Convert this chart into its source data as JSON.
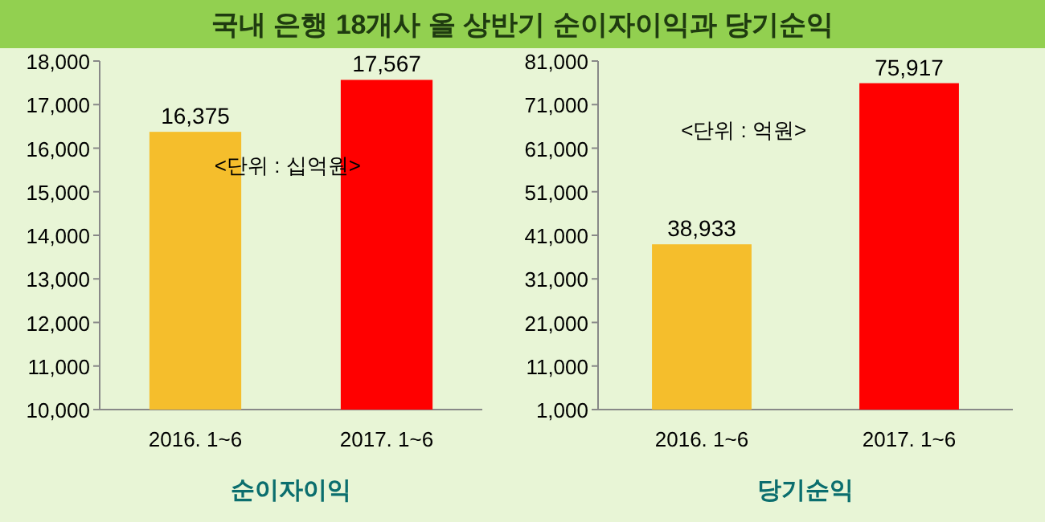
{
  "chart_data": [
    {
      "type": "bar",
      "title": "국내 은행 18개사 올 상반기 순이자이익과 당기순익",
      "xlabel": "순이자이익",
      "categories": [
        "2016. 1~6",
        "2017. 1~6"
      ],
      "values": [
        16375,
        17567
      ],
      "colors": [
        "#f5be2c",
        "#ff0000"
      ],
      "value_labels": [
        "16,375",
        "17,567"
      ],
      "ylim": [
        10000,
        18000
      ],
      "yticks": [
        {
          "value": 10000,
          "label": "10,000"
        },
        {
          "value": 11000,
          "label": "11,000"
        },
        {
          "value": 12000,
          "label": "12,000"
        },
        {
          "value": 13000,
          "label": "13,000"
        },
        {
          "value": 14000,
          "label": "14,000"
        },
        {
          "value": 15000,
          "label": "15,000"
        },
        {
          "value": 16000,
          "label": "16,000"
        },
        {
          "value": 17000,
          "label": "17,000"
        },
        {
          "value": 18000,
          "label": "18,000"
        }
      ],
      "annotations": [
        "<단위 : 십억원>"
      ]
    },
    {
      "type": "bar",
      "xlabel": "당기순익",
      "categories": [
        "2016. 1~6",
        "2017. 1~6"
      ],
      "values": [
        38933,
        75917
      ],
      "colors": [
        "#f5be2c",
        "#ff0000"
      ],
      "value_labels": [
        "38,933",
        "75,917"
      ],
      "ylim": [
        1000,
        81000
      ],
      "yticks": [
        {
          "value": 1000,
          "label": "1,000"
        },
        {
          "value": 11000,
          "label": "11,000"
        },
        {
          "value": 21000,
          "label": "21,000"
        },
        {
          "value": 31000,
          "label": "31,000"
        },
        {
          "value": 41000,
          "label": "41,000"
        },
        {
          "value": 51000,
          "label": "51,000"
        },
        {
          "value": 61000,
          "label": "61,000"
        },
        {
          "value": 71000,
          "label": "71,000"
        },
        {
          "value": 81000,
          "label": "81,000"
        }
      ],
      "annotations": [
        "<단위 : 억원>"
      ]
    }
  ]
}
